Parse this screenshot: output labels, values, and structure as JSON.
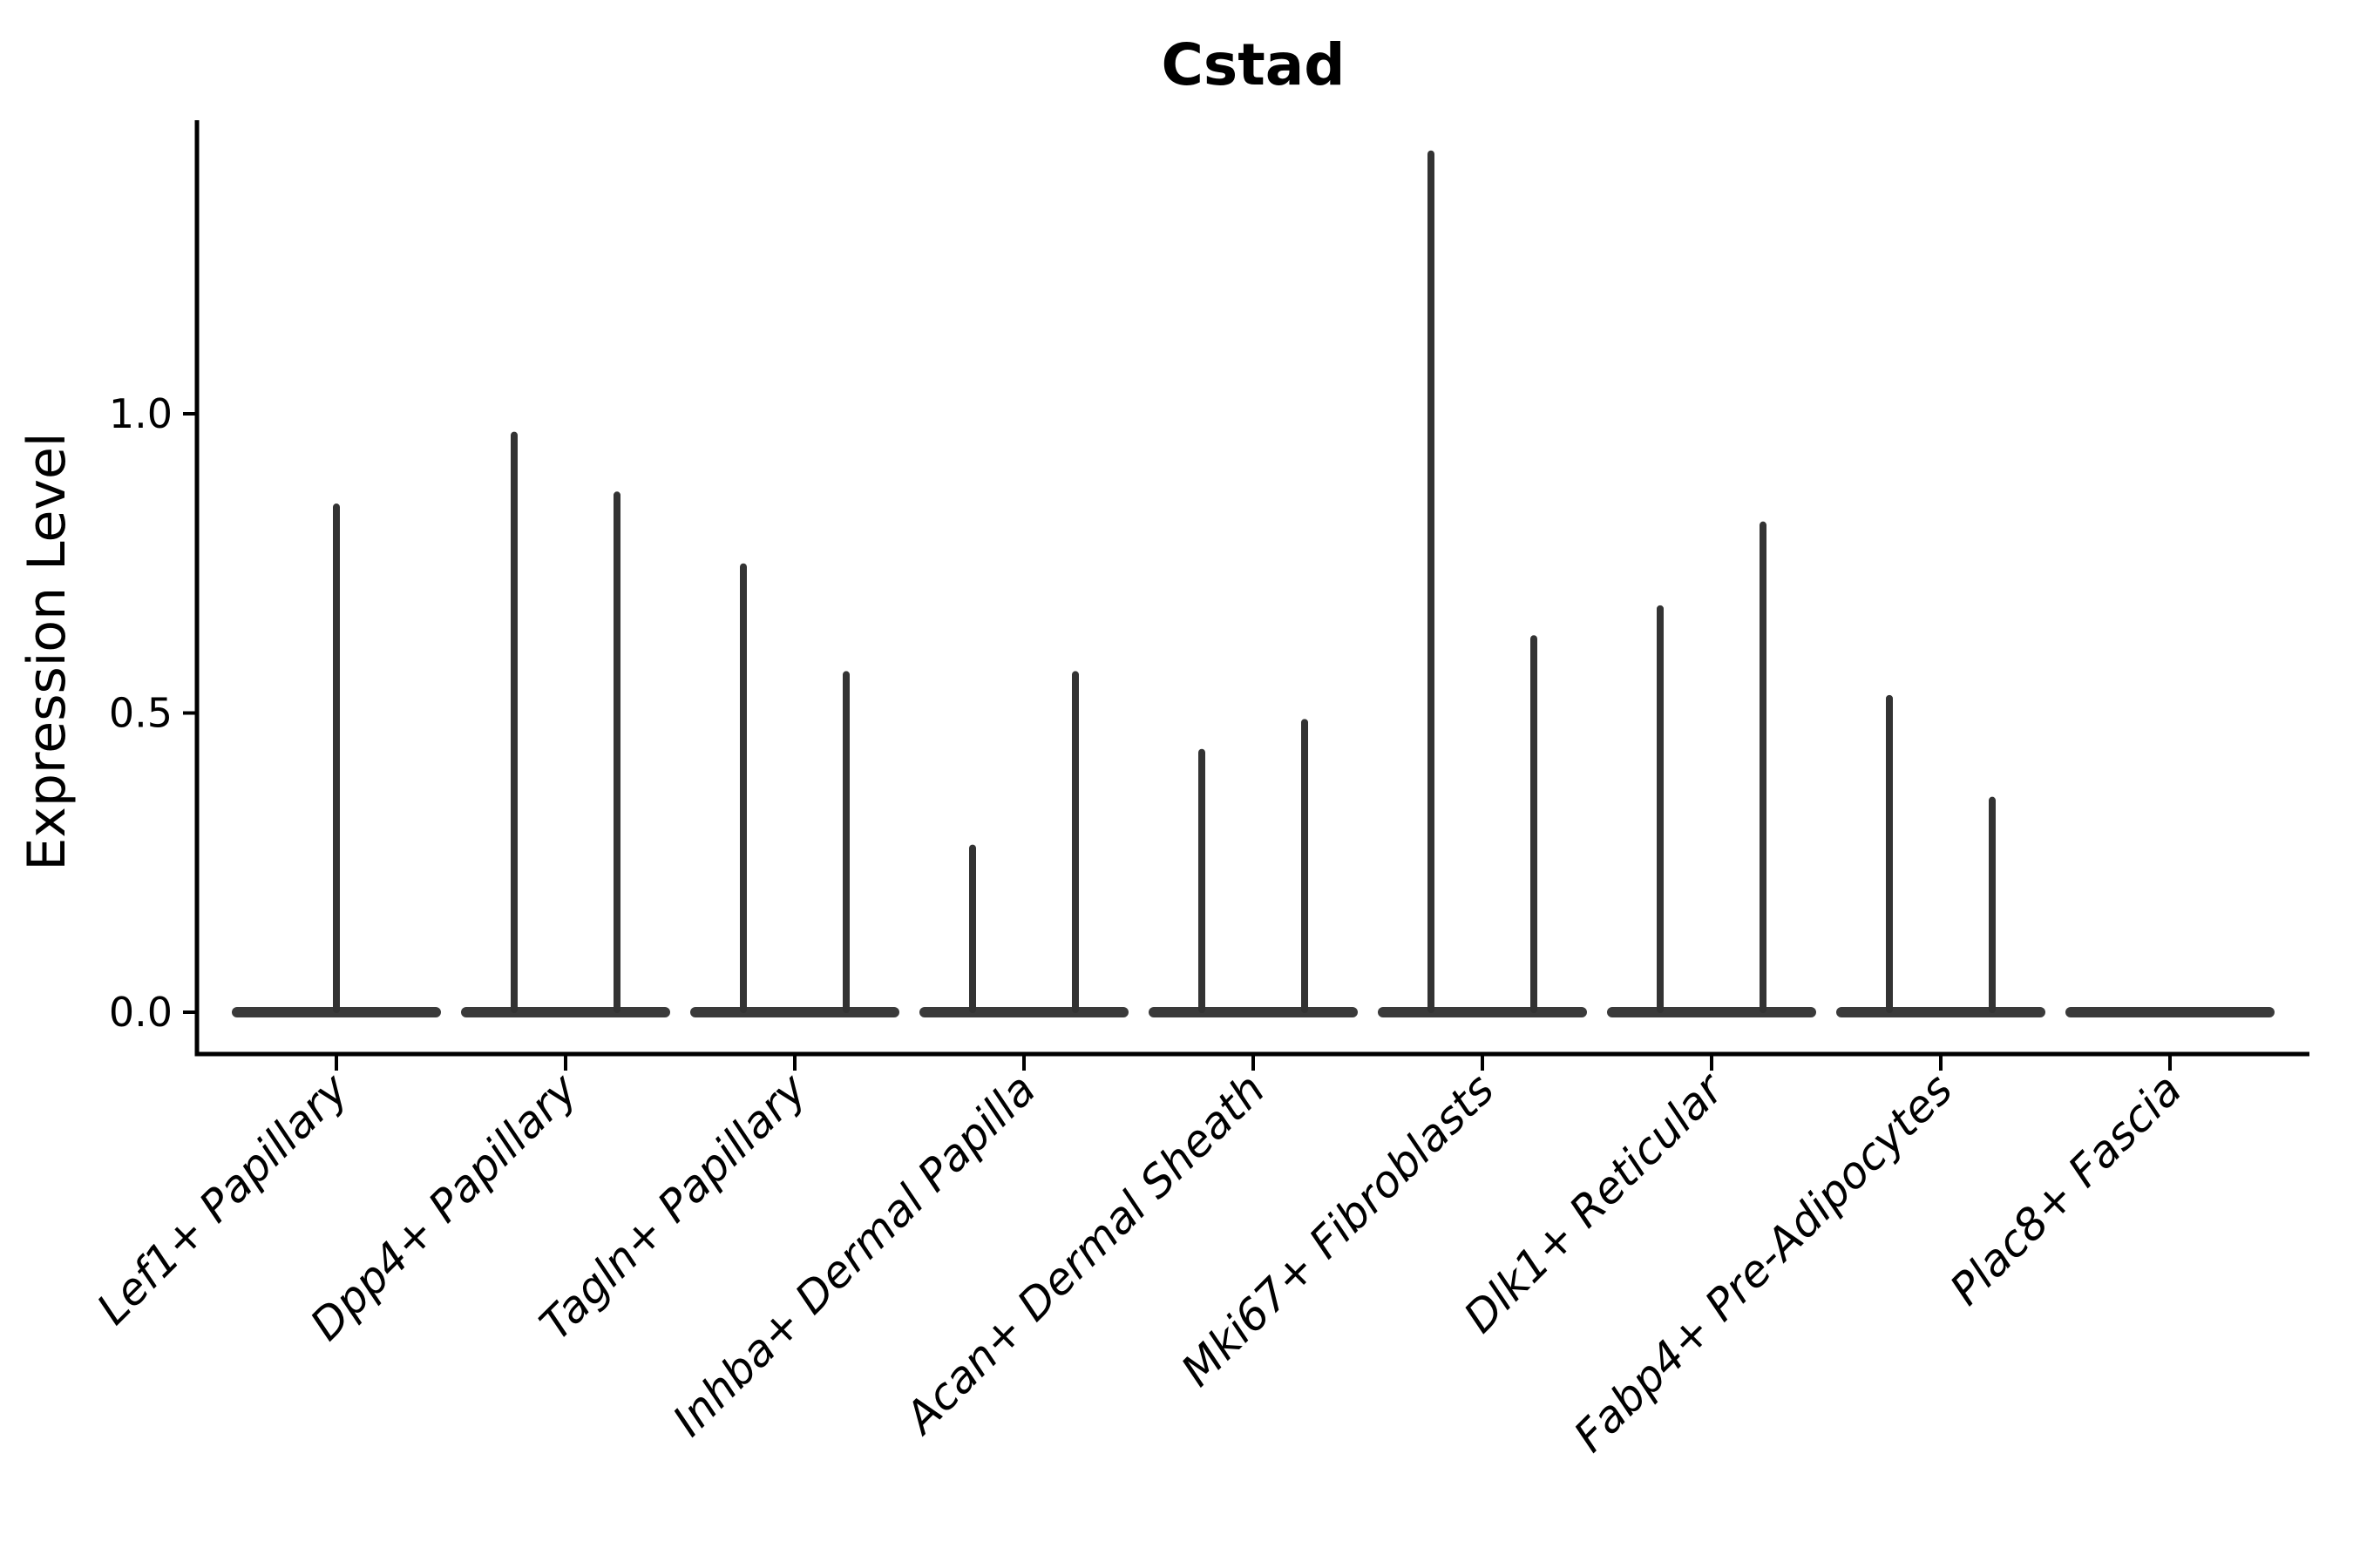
{
  "chart_data": {
    "type": "violin",
    "title": "Cstad",
    "xlabel": "",
    "ylabel": "Expression Level",
    "grid": false,
    "legend": null,
    "ylim": [
      -0.07,
      1.49
    ],
    "yticks": [
      {
        "value": 0.0,
        "label": "0.0"
      },
      {
        "value": 0.5,
        "label": "0.5"
      },
      {
        "value": 1.0,
        "label": "1.0"
      }
    ],
    "categories": [
      {
        "label": "Lef1+ Papillary",
        "spikes": [
          {
            "offset": 0,
            "max": 0.85
          }
        ]
      },
      {
        "label": "Dpp4+ Papillary",
        "spikes": [
          {
            "offset": -59,
            "max": 0.97
          },
          {
            "offset": 59,
            "max": 0.87
          }
        ]
      },
      {
        "label": "Tagln+ Papillary",
        "spikes": [
          {
            "offset": -59,
            "max": 0.75
          },
          {
            "offset": 59,
            "max": 0.57
          }
        ]
      },
      {
        "label": "Inhba+ Dermal Papilla",
        "spikes": [
          {
            "offset": -59,
            "max": 0.28
          },
          {
            "offset": 59,
            "max": 0.57
          }
        ]
      },
      {
        "label": "Acan+ Dermal Sheath",
        "spikes": [
          {
            "offset": -59,
            "max": 0.44
          },
          {
            "offset": 59,
            "max": 0.49
          }
        ]
      },
      {
        "label": "Mki67+ Fibroblasts",
        "spikes": [
          {
            "offset": -59,
            "max": 1.44
          },
          {
            "offset": 59,
            "max": 0.63
          }
        ]
      },
      {
        "label": "Dlk1+ Reticular",
        "spikes": [
          {
            "offset": -59,
            "max": 0.68
          },
          {
            "offset": 59,
            "max": 0.82
          }
        ]
      },
      {
        "label": "Fabp4+ Pre-Adipocytes",
        "spikes": [
          {
            "offset": -59,
            "max": 0.53
          },
          {
            "offset": 59,
            "max": 0.36
          }
        ]
      },
      {
        "label": "Plac8+ Fascia",
        "spikes": []
      }
    ],
    "violin_base_half_width": 120,
    "colors": {
      "violin": "#3a3a3a",
      "spike": "#333333",
      "axis": "#000000",
      "text": "#000000",
      "background": "#ffffff"
    }
  }
}
